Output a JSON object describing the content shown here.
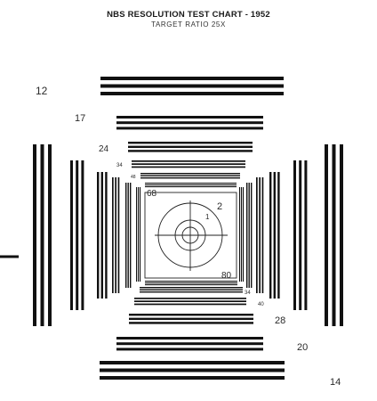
{
  "title": "NBS RESOLUTION TEST CHART - 1952",
  "subtitle": "TARGET RATIO 25X",
  "labels": {
    "l12": "12",
    "l17": "17",
    "l24": "24",
    "l34a": "34",
    "l48": "48",
    "l68": "68",
    "l2": "2",
    "l1": "1",
    "l80": "80",
    "l34b": "34",
    "l40": "40",
    "l28": "28",
    "l20": "20",
    "l14": "14"
  },
  "colors": {
    "ink": "#111111",
    "background": "#ffffff"
  }
}
